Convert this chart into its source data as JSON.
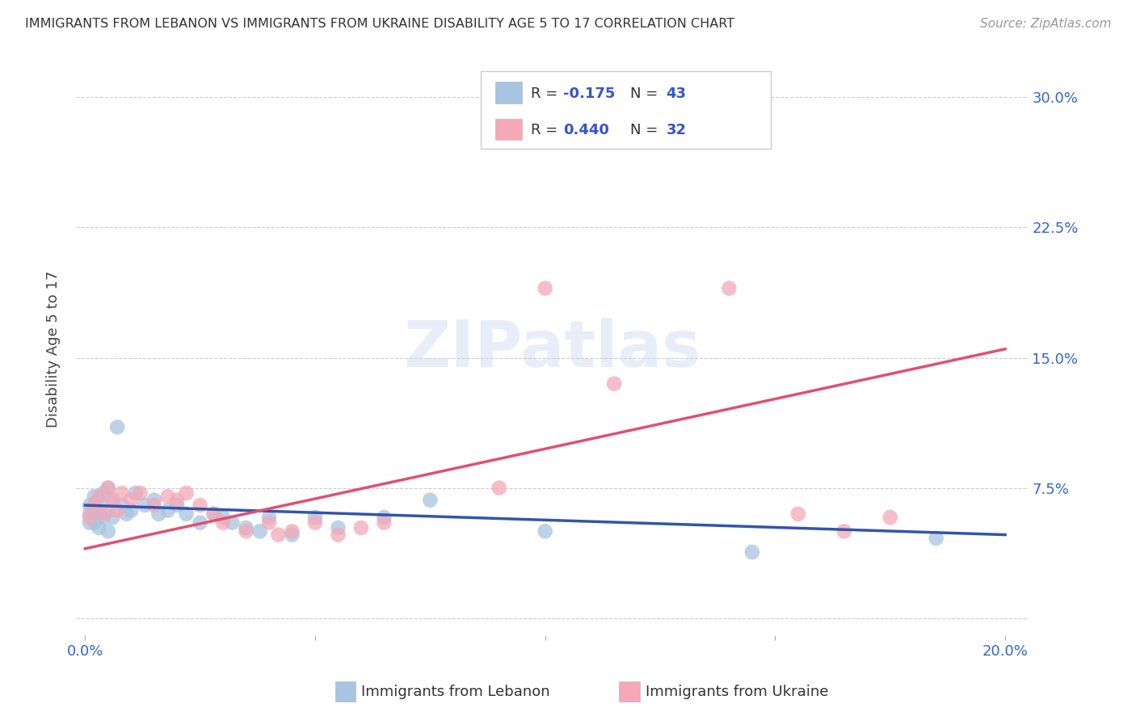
{
  "title": "IMMIGRANTS FROM LEBANON VS IMMIGRANTS FROM UKRAINE DISABILITY AGE 5 TO 17 CORRELATION CHART",
  "source": "Source: ZipAtlas.com",
  "ylabel": "Disability Age 5 to 17",
  "xlim": [
    -0.002,
    0.205
  ],
  "ylim": [
    -0.01,
    0.32
  ],
  "yticks": [
    0.0,
    0.075,
    0.15,
    0.225,
    0.3
  ],
  "ytick_labels": [
    "",
    "7.5%",
    "15.0%",
    "22.5%",
    "30.0%"
  ],
  "xticks": [
    0.0,
    0.05,
    0.1,
    0.15,
    0.2
  ],
  "xtick_labels": [
    "0.0%",
    "",
    "",
    "",
    "20.0%"
  ],
  "lebanon_color": "#a8c4e0",
  "ukraine_color": "#f4a8b8",
  "lebanon_line_color": "#3355aa",
  "ukraine_line_color": "#e05070",
  "background_color": "#ffffff",
  "lebanon_x": [
    0.001,
    0.001,
    0.001,
    0.002,
    0.002,
    0.002,
    0.002,
    0.003,
    0.003,
    0.003,
    0.004,
    0.004,
    0.005,
    0.005,
    0.005,
    0.006,
    0.006,
    0.007,
    0.008,
    0.009,
    0.01,
    0.011,
    0.013,
    0.015,
    0.016,
    0.018,
    0.02,
    0.022,
    0.025,
    0.028,
    0.03,
    0.032,
    0.035,
    0.038,
    0.04,
    0.045,
    0.05,
    0.055,
    0.065,
    0.075,
    0.1,
    0.145,
    0.185
  ],
  "lebanon_y": [
    0.06,
    0.065,
    0.055,
    0.07,
    0.065,
    0.06,
    0.055,
    0.068,
    0.06,
    0.052,
    0.072,
    0.058,
    0.075,
    0.062,
    0.05,
    0.068,
    0.058,
    0.11,
    0.065,
    0.06,
    0.062,
    0.072,
    0.065,
    0.068,
    0.06,
    0.062,
    0.065,
    0.06,
    0.055,
    0.06,
    0.058,
    0.055,
    0.052,
    0.05,
    0.058,
    0.048,
    0.058,
    0.052,
    0.058,
    0.068,
    0.05,
    0.038,
    0.046
  ],
  "ukraine_x": [
    0.001,
    0.002,
    0.003,
    0.004,
    0.005,
    0.006,
    0.007,
    0.008,
    0.01,
    0.012,
    0.015,
    0.018,
    0.02,
    0.022,
    0.025,
    0.028,
    0.03,
    0.035,
    0.04,
    0.042,
    0.045,
    0.05,
    0.055,
    0.06,
    0.065,
    0.09,
    0.1,
    0.115,
    0.14,
    0.155,
    0.165,
    0.175
  ],
  "ukraine_y": [
    0.058,
    0.065,
    0.07,
    0.06,
    0.075,
    0.068,
    0.062,
    0.072,
    0.068,
    0.072,
    0.065,
    0.07,
    0.068,
    0.072,
    0.065,
    0.06,
    0.055,
    0.05,
    0.055,
    0.048,
    0.05,
    0.055,
    0.048,
    0.052,
    0.055,
    0.075,
    0.19,
    0.135,
    0.19,
    0.06,
    0.05,
    0.058
  ]
}
